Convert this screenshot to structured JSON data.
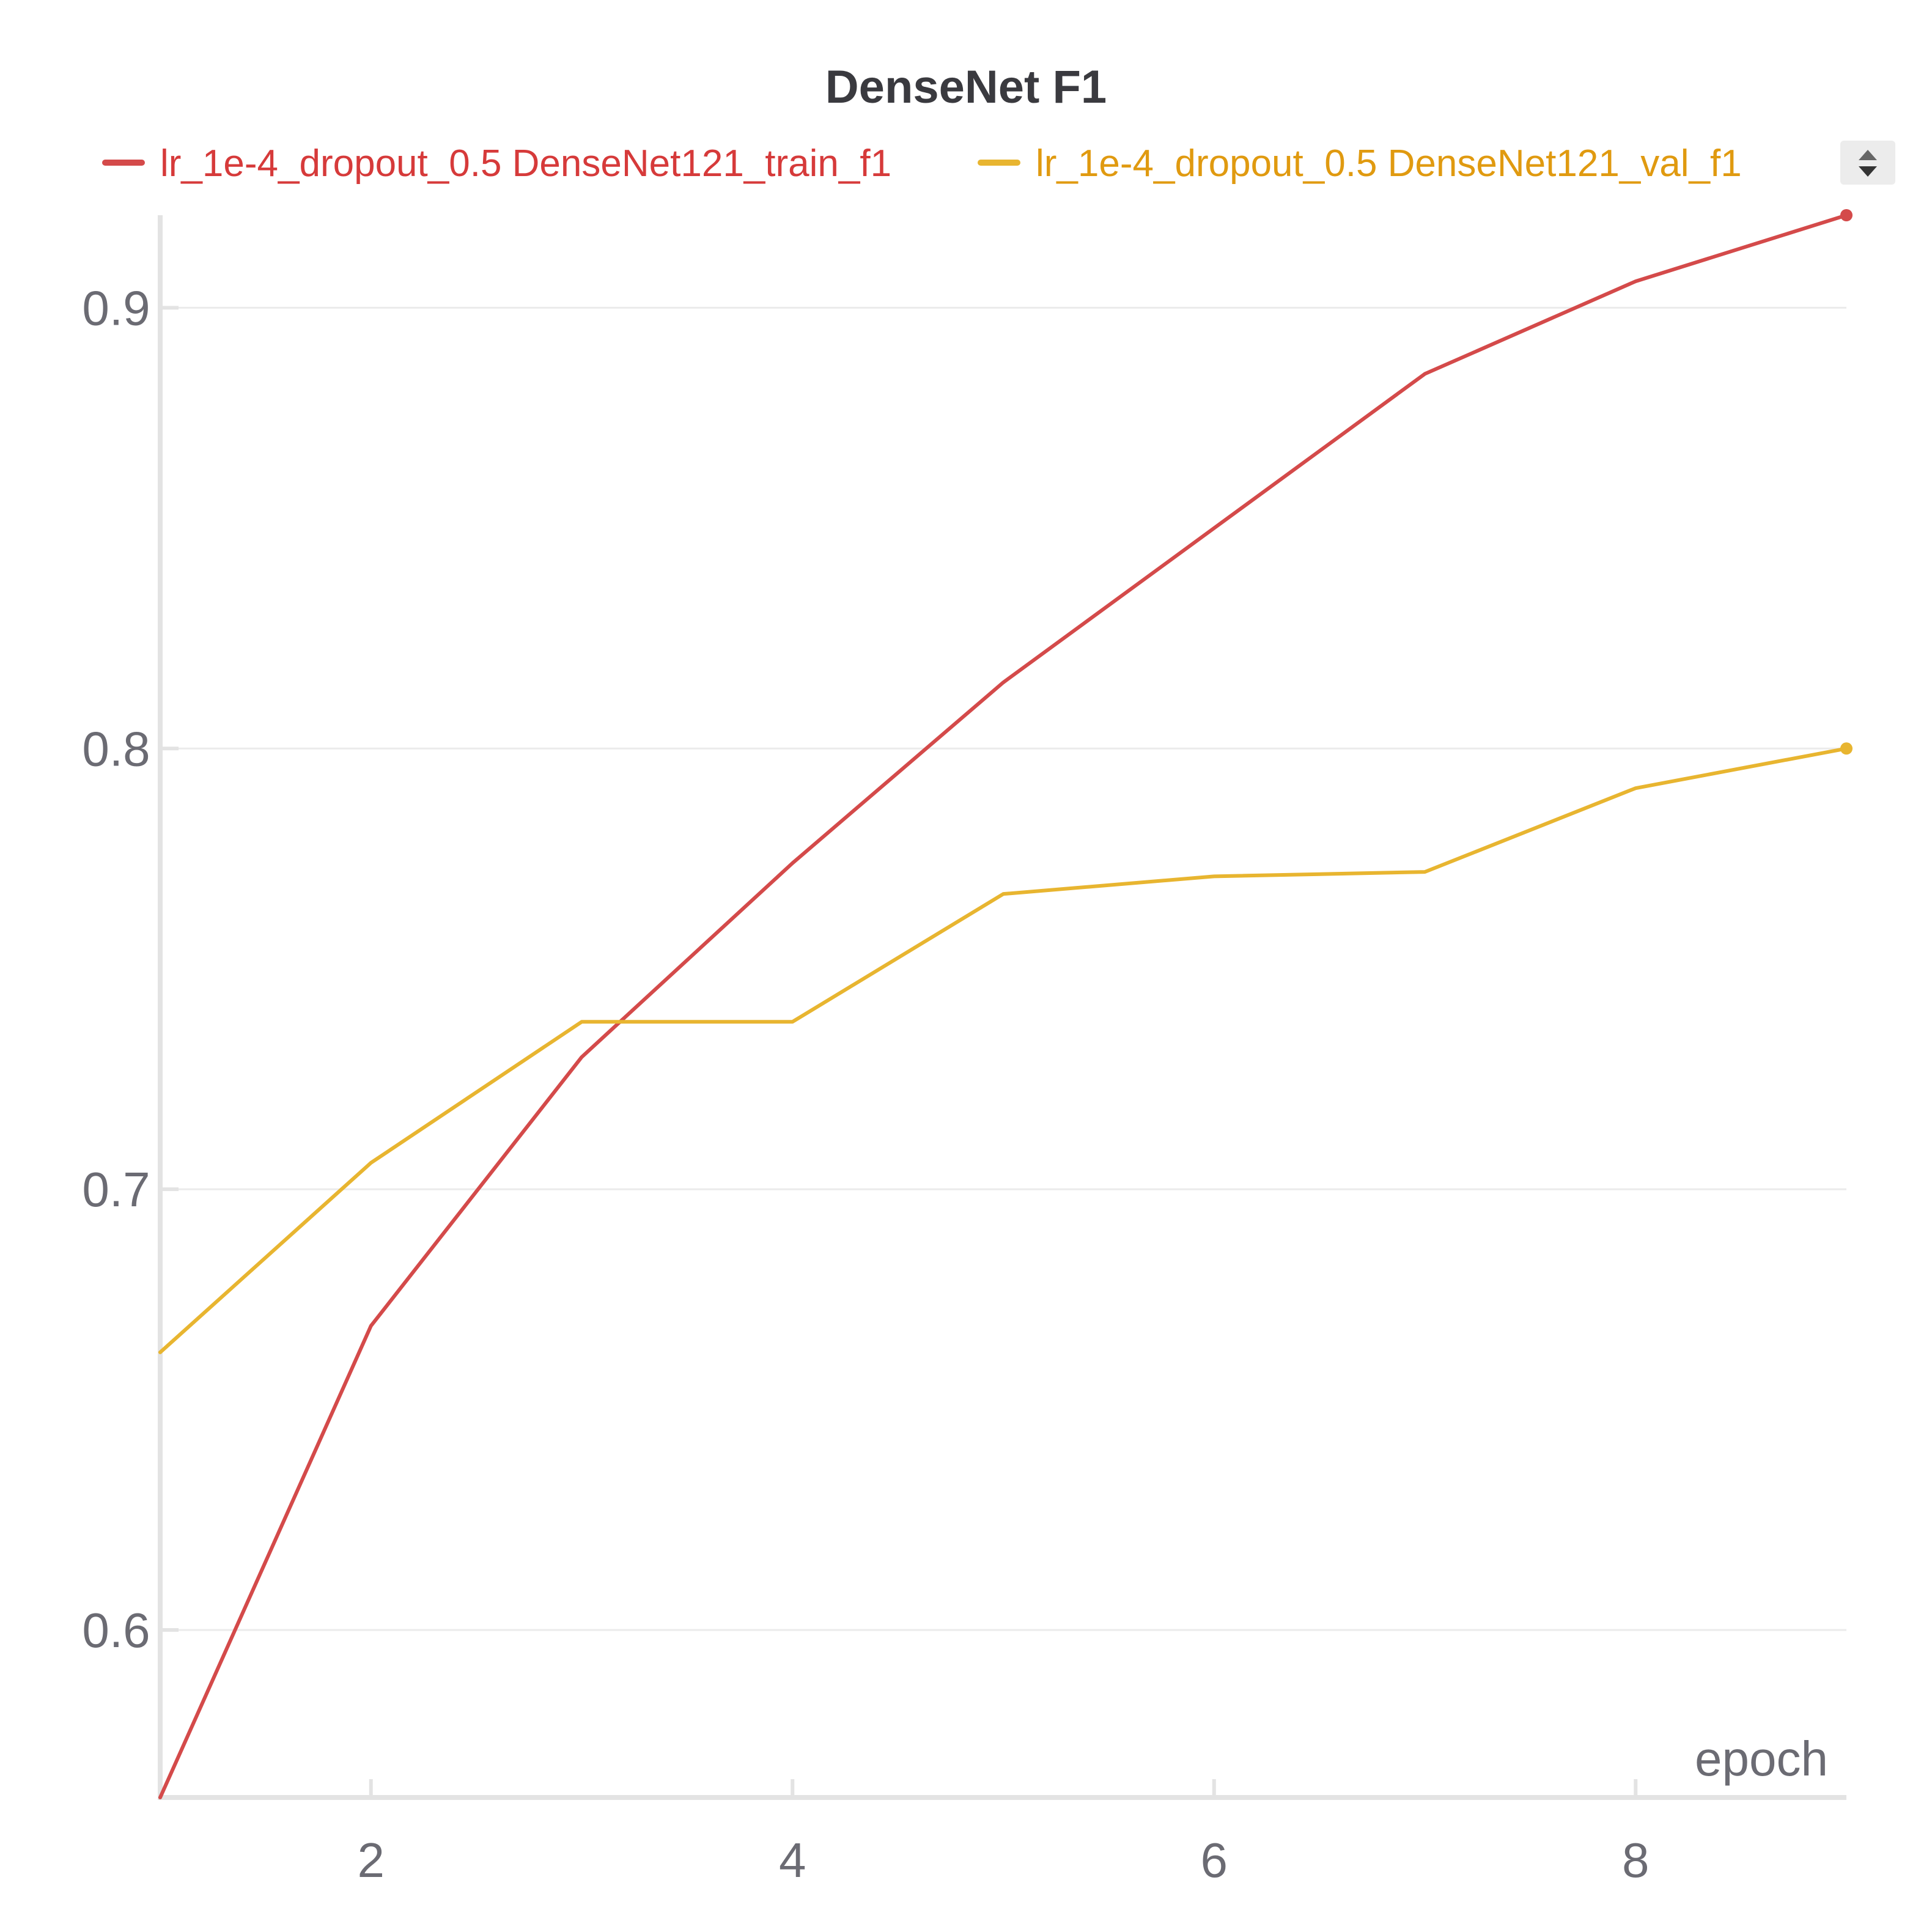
{
  "chart_data": {
    "type": "line",
    "title": "DenseNet F1",
    "xlabel": "epoch",
    "ylabel": "",
    "xlim": [
      1,
      9
    ],
    "ylim": [
      0.562,
      0.921
    ],
    "x_ticks": [
      "2",
      "4",
      "6",
      "8"
    ],
    "x_tick_values": [
      2,
      4,
      6,
      8
    ],
    "y_ticks": [
      "0.6",
      "0.7",
      "0.8",
      "0.9"
    ],
    "y_tick_values": [
      0.6,
      0.7,
      0.8,
      0.9
    ],
    "grid": true,
    "legend_position": "top",
    "x": [
      1,
      2,
      3,
      4,
      5,
      6,
      7,
      8,
      9
    ],
    "series": [
      {
        "name": "lr_1e-4_dropout_0.5 DenseNet121_train_f1",
        "color": "#d44a4a",
        "legend_text_color": "#d63a3a",
        "values": [
          0.562,
          0.669,
          0.73,
          0.774,
          0.815,
          0.85,
          0.885,
          0.906,
          0.921
        ]
      },
      {
        "name": "lr_1e-4_dropout_0.5 DenseNet121_val_f1",
        "color": "#e8b530",
        "legend_text_color": "#e09a10",
        "values": [
          0.663,
          0.706,
          0.738,
          0.738,
          0.767,
          0.771,
          0.772,
          0.791,
          0.8
        ]
      }
    ]
  },
  "legend": {
    "scroll_control_icon": "sort-arrows-icon"
  }
}
